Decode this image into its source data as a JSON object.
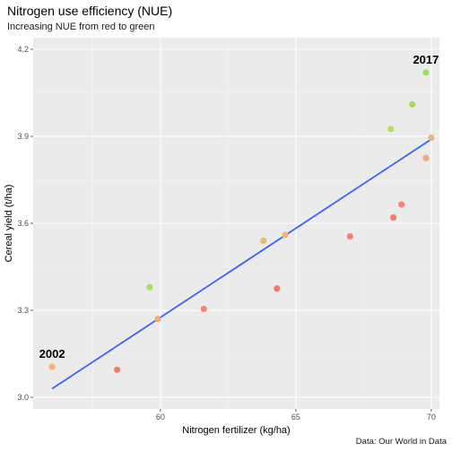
{
  "chart_data": {
    "type": "scatter",
    "title": "Nitrogen use efficiency (NUE)",
    "subtitle": "Increasing NUE from red to green",
    "xlabel": "Nitrogen fertilizer (kg/ha)",
    "ylabel": "Cereal yield (t/ha)",
    "caption": "Data: Our World in Data",
    "xlim": [
      55.3,
      70.3
    ],
    "ylim": [
      2.96,
      4.24
    ],
    "xticks": [
      60,
      65,
      70
    ],
    "xtick_labels": [
      "60",
      "65",
      "70"
    ],
    "yticks": [
      3.0,
      3.3,
      3.6,
      3.9,
      4.2
    ],
    "ytick_labels": [
      "3.0",
      "3.3",
      "3.6",
      "3.9",
      "4.2"
    ],
    "grid": true,
    "panel_background": "#ebebeb",
    "trend_line": {
      "method": "linear",
      "color": "#3366ff",
      "x": [
        56.0,
        70.0
      ],
      "y": [
        3.03,
        3.89
      ]
    },
    "points": [
      {
        "x": 56.0,
        "y": 3.105,
        "nue": 0.55,
        "color": "#f8b07e"
      },
      {
        "x": 58.4,
        "y": 3.095,
        "nue": 0.15,
        "color": "#f8766d"
      },
      {
        "x": 59.6,
        "y": 3.38,
        "nue": 0.92,
        "color": "#a8e05f"
      },
      {
        "x": 59.9,
        "y": 3.27,
        "nue": 0.45,
        "color": "#f9a77c"
      },
      {
        "x": 61.6,
        "y": 3.305,
        "nue": 0.25,
        "color": "#f8866f"
      },
      {
        "x": 63.8,
        "y": 3.54,
        "nue": 0.62,
        "color": "#e9b96a"
      },
      {
        "x": 64.3,
        "y": 3.375,
        "nue": 0.1,
        "color": "#f8766d"
      },
      {
        "x": 64.6,
        "y": 3.56,
        "nue": 0.55,
        "color": "#f4b17b"
      },
      {
        "x": 67.0,
        "y": 3.555,
        "nue": 0.2,
        "color": "#f8806f"
      },
      {
        "x": 68.5,
        "y": 3.925,
        "nue": 0.9,
        "color": "#b2e05d"
      },
      {
        "x": 68.6,
        "y": 3.62,
        "nue": 0.12,
        "color": "#f8786d"
      },
      {
        "x": 68.9,
        "y": 3.665,
        "nue": 0.22,
        "color": "#f8836f"
      },
      {
        "x": 69.3,
        "y": 4.01,
        "nue": 0.95,
        "color": "#9fe05e"
      },
      {
        "x": 69.8,
        "y": 3.825,
        "nue": 0.5,
        "color": "#f4a97a"
      },
      {
        "x": 69.8,
        "y": 4.12,
        "nue": 1.0,
        "color": "#98e05f"
      },
      {
        "x": 70.0,
        "y": 3.895,
        "nue": 0.58,
        "color": "#edb873"
      }
    ],
    "annotations": [
      {
        "text": "2002",
        "x": 56.0,
        "y": 3.105
      },
      {
        "text": "2017",
        "x": 69.8,
        "y": 4.12
      }
    ]
  }
}
